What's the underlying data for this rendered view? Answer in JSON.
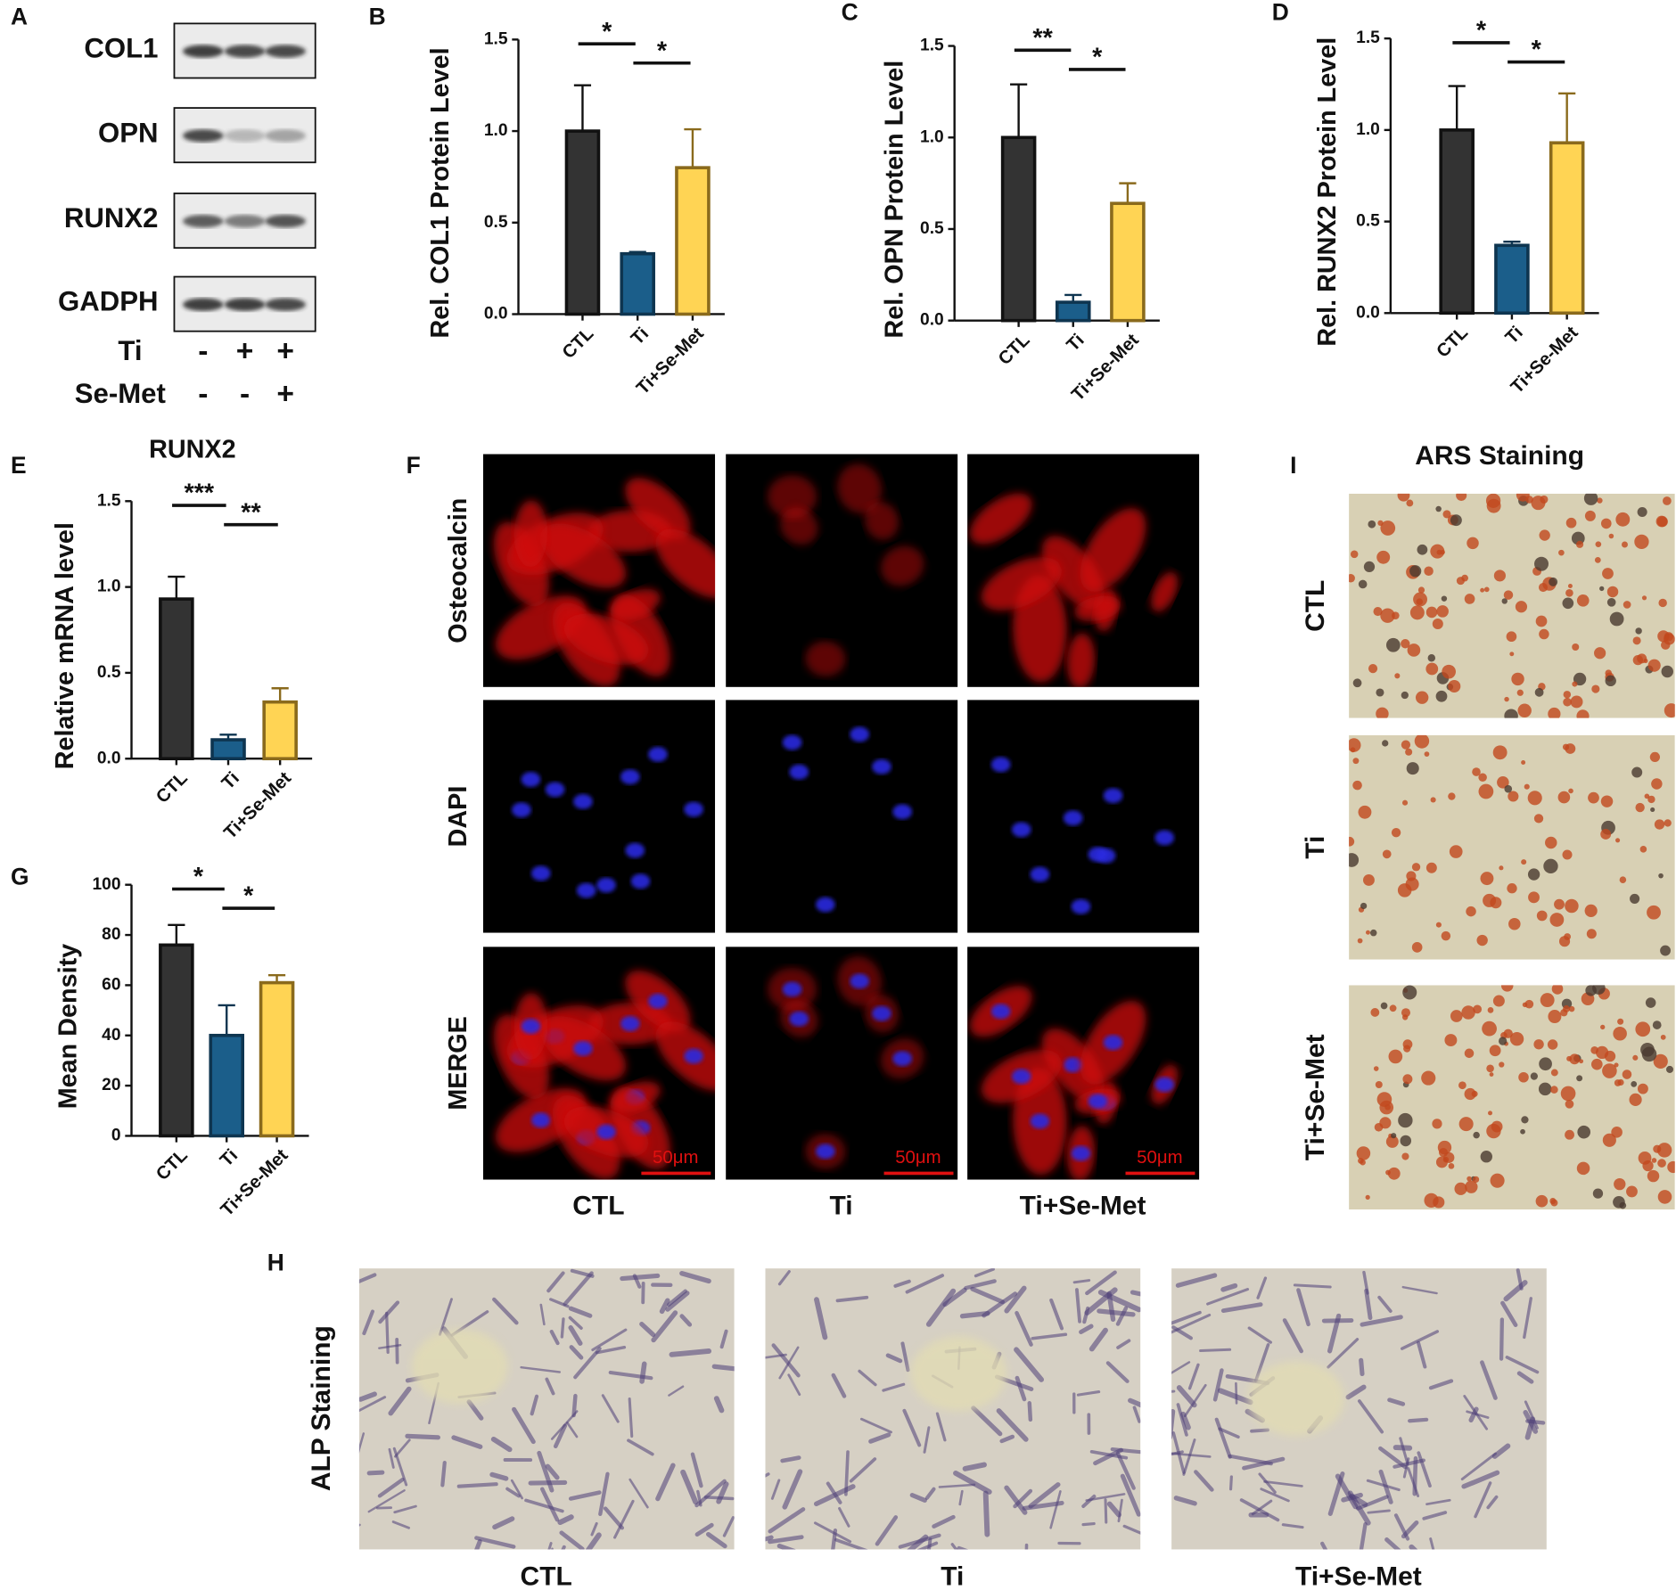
{
  "panel_labels": [
    "A",
    "B",
    "C",
    "D",
    "E",
    "F",
    "G",
    "H",
    "I"
  ],
  "blot": {
    "proteins": [
      "COL1",
      "OPN",
      "RUNX2",
      "GADPH"
    ],
    "treatments": [
      {
        "name": "Ti",
        "signs": [
          "-",
          "+",
          "+"
        ]
      },
      {
        "name": "Se-Met",
        "signs": [
          "-",
          "-",
          "+"
        ]
      }
    ]
  },
  "chart_data": [
    {
      "type": "bar",
      "ylabel": "Rel. COL1 Protein Level",
      "categories": [
        "CTL",
        "Ti",
        "Ti+Se-Met"
      ],
      "values": [
        1.0,
        0.33,
        0.8
      ],
      "errors": [
        0.25,
        0.01,
        0.21
      ],
      "colors": [
        "#333333",
        "#1b5e8a",
        "#ffd454"
      ],
      "edge_colors": [
        "#111111",
        "#0e3550",
        "#8a6a1c"
      ],
      "ylim": [
        0,
        1.5
      ],
      "yticks": [
        {
          "value": 0,
          "label": "0.0"
        },
        0.5,
        {
          "value": 1,
          "label": "1.0"
        },
        1.5
      ],
      "annotations": [
        {
          "text": "*",
          "between": [
            "CTL",
            "Ti"
          ]
        },
        {
          "text": "*",
          "between": [
            "Ti",
            "Ti+Se-Met"
          ]
        }
      ]
    },
    {
      "type": "bar",
      "ylabel": "Rel. OPN Protein Level",
      "categories": [
        "CTL",
        "Ti",
        "Ti+Se-Met"
      ],
      "values": [
        1.0,
        0.1,
        0.64
      ],
      "errors": [
        0.29,
        0.04,
        0.11
      ],
      "colors": [
        "#333333",
        "#1b5e8a",
        "#ffd454"
      ],
      "edge_colors": [
        "#111111",
        "#0e3550",
        "#8a6a1c"
      ],
      "ylim": [
        0,
        1.5
      ],
      "yticks": [
        {
          "value": 0,
          "label": "0.0"
        },
        0.5,
        {
          "value": 1,
          "label": "1.0"
        },
        1.5
      ],
      "annotations": [
        {
          "text": "**",
          "between": [
            "CTL",
            "Ti"
          ]
        },
        {
          "text": "*",
          "between": [
            "Ti",
            "Ti+Se-Met"
          ]
        }
      ]
    },
    {
      "type": "bar",
      "ylabel": "Rel. RUNX2 Protein Level",
      "categories": [
        "CTL",
        "Ti",
        "Ti+Se-Met"
      ],
      "values": [
        1.0,
        0.37,
        0.93
      ],
      "errors": [
        0.24,
        0.02,
        0.27
      ],
      "colors": [
        "#333333",
        "#1b5e8a",
        "#ffd454"
      ],
      "edge_colors": [
        "#111111",
        "#0e3550",
        "#8a6a1c"
      ],
      "ylim": [
        0,
        1.5
      ],
      "yticks": [
        {
          "value": 0,
          "label": "0.0"
        },
        0.5,
        {
          "value": 1,
          "label": "1.0"
        },
        1.5
      ],
      "annotations": [
        {
          "text": "*",
          "between": [
            "CTL",
            "Ti"
          ]
        },
        {
          "text": "*",
          "between": [
            "Ti",
            "Ti+Se-Met"
          ]
        }
      ]
    },
    {
      "type": "bar",
      "title": "RUNX2",
      "ylabel": "Relative mRNA level",
      "categories": [
        "CTL",
        "Ti",
        "Ti+Se-Met"
      ],
      "values": [
        0.93,
        0.11,
        0.33
      ],
      "errors": [
        0.13,
        0.03,
        0.08
      ],
      "colors": [
        "#333333",
        "#1b5e8a",
        "#ffd454"
      ],
      "edge_colors": [
        "#111111",
        "#0e3550",
        "#8a6a1c"
      ],
      "ylim": [
        0,
        1.5
      ],
      "yticks": [
        {
          "value": 0,
          "label": "0.0"
        },
        0.5,
        {
          "value": 1,
          "label": "1.0"
        },
        1.5
      ],
      "annotations": [
        {
          "text": "***",
          "between": [
            "CTL",
            "Ti"
          ]
        },
        {
          "text": "**",
          "between": [
            "Ti",
            "Ti+Se-Met"
          ]
        }
      ]
    },
    {
      "type": "bar",
      "ylabel": "Mean Density",
      "categories": [
        "CTL",
        "Ti",
        "Ti+Se-Met"
      ],
      "values": [
        76,
        40,
        61
      ],
      "errors": [
        8,
        12,
        3
      ],
      "colors": [
        "#333333",
        "#1b5e8a",
        "#ffd454"
      ],
      "edge_colors": [
        "#111111",
        "#0e3550",
        "#8a6a1c"
      ],
      "ylim": [
        0,
        100
      ],
      "yticks": [
        0,
        20,
        40,
        60,
        80,
        100
      ],
      "annotations": [
        {
          "text": "*",
          "between": [
            "CTL",
            "Ti"
          ]
        },
        {
          "text": "*",
          "between": [
            "Ti",
            "Ti+Se-Met"
          ]
        }
      ]
    }
  ],
  "fluorescence": {
    "rows": [
      "Osteocalcin",
      "DAPI",
      "MERGE"
    ],
    "columns": [
      "CTL",
      "Ti",
      "Ti+Se-Met"
    ],
    "scale_bar": "50μm"
  },
  "ars": {
    "title": "ARS Staining",
    "rows": [
      "CTL",
      "Ti",
      "Ti+Se-Met"
    ]
  },
  "alp": {
    "title": "ALP Staining",
    "columns": [
      "CTL",
      "Ti",
      "Ti+Se-Met"
    ]
  }
}
